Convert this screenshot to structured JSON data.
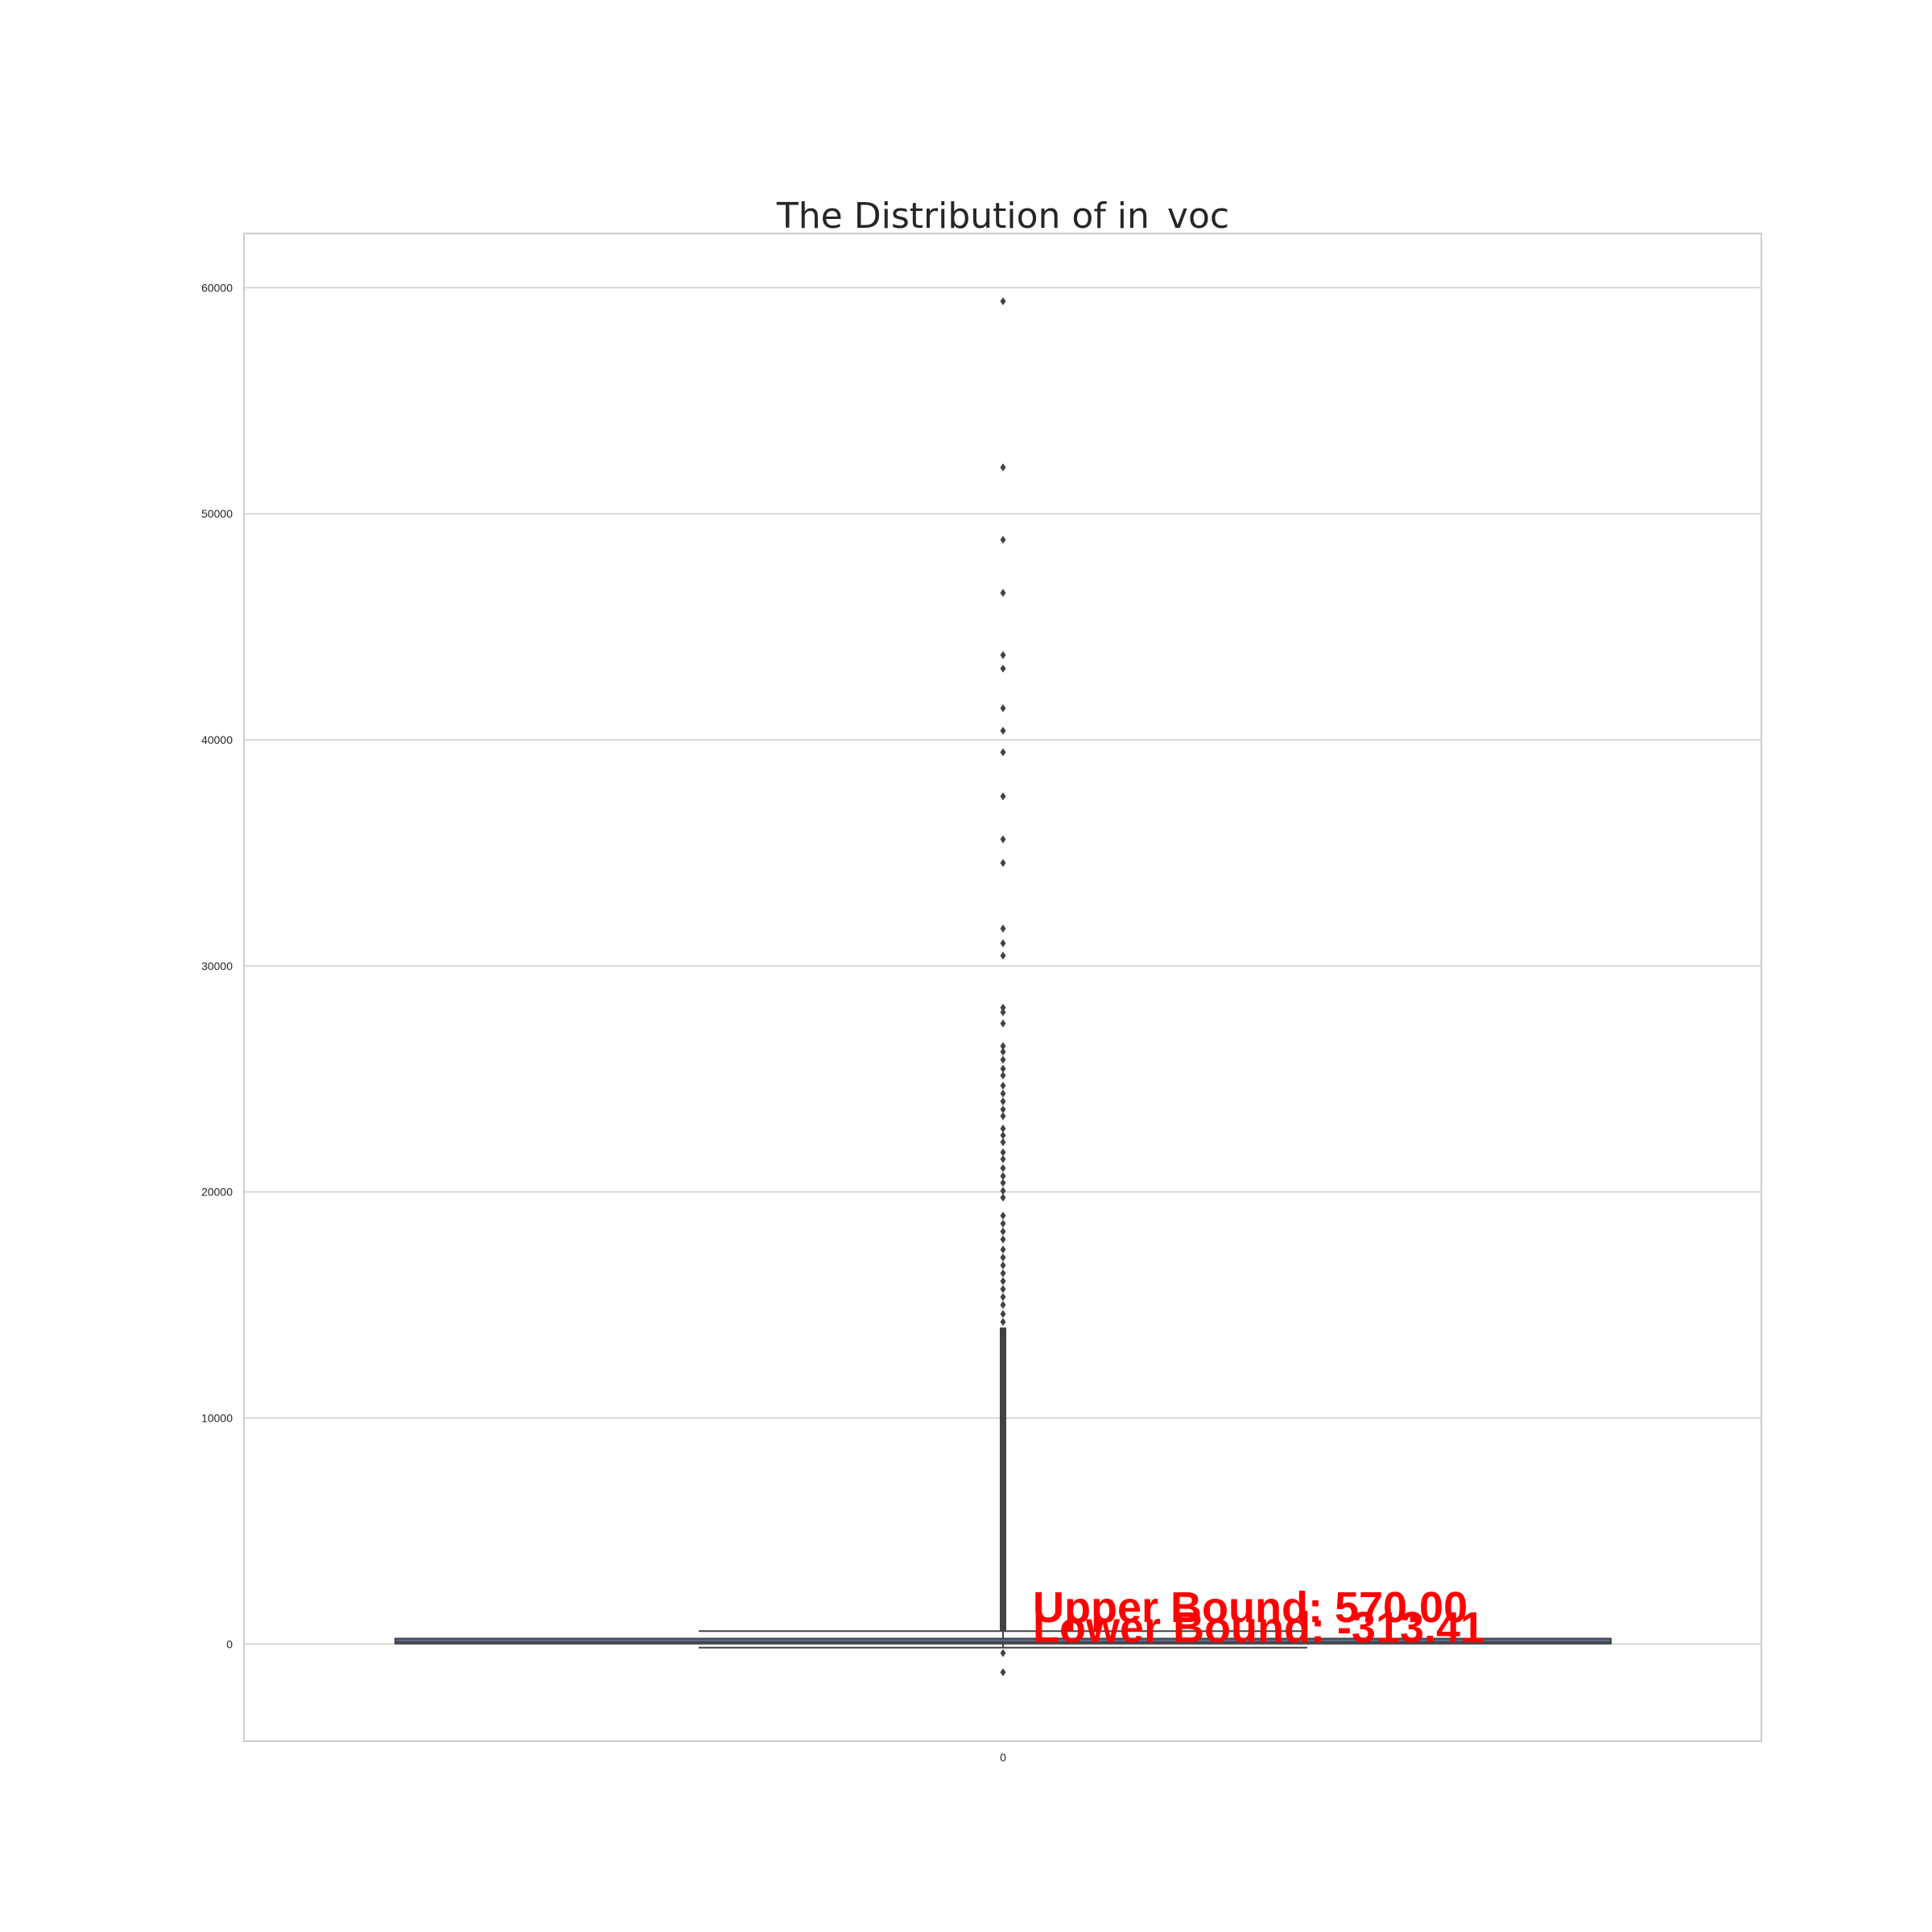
{
  "chart_data": {
    "type": "box",
    "title": "The Distribution of in_voc",
    "xlabel": "",
    "ylabel": "",
    "categories": [
      "0"
    ],
    "ylim": [
      -4300,
      62400
    ],
    "yticks": [
      0,
      10000,
      20000,
      30000,
      40000,
      50000,
      60000
    ],
    "grid": "horizontal",
    "box": {
      "q1": 18,
      "median": 90,
      "q3": 240,
      "whisker_low": -160,
      "whisker_high": 570
    },
    "outliers": [
      59400,
      52050,
      48850,
      46500,
      43750,
      43150,
      41400,
      40400,
      39450,
      37500,
      35600,
      34550,
      31650,
      31000,
      30450,
      28150,
      27950,
      27450,
      26450,
      26200,
      25850,
      25450,
      25150,
      24700,
      24350,
      24000,
      23650,
      23350,
      22800,
      22500,
      22200,
      21750,
      21450,
      21050,
      20700,
      20400,
      20050,
      19750,
      18950,
      18600,
      18250,
      17900,
      17450,
      17100,
      16750,
      16400,
      16050,
      15700,
      15350,
      15000,
      14600,
      14250,
      13850,
      13500,
      13200,
      12900,
      12600,
      12300,
      12000,
      11700,
      11400,
      11100,
      10800,
      10500,
      10200,
      9900,
      9600,
      9300,
      9000,
      8700,
      8400,
      8100,
      7800,
      7500,
      7200,
      6900,
      6600,
      6300,
      6000,
      5700,
      5400,
      5100,
      4800,
      4500,
      4200,
      3900,
      3600,
      3300,
      3000,
      2700,
      2400,
      2100,
      1800,
      1500,
      1200,
      950,
      750,
      -400,
      -1250
    ],
    "annotations": [
      {
        "text": "Upper Bound: 570.00",
        "value": 570.0
      },
      {
        "text": "Lower Bound: -313.41",
        "value": -313.41
      }
    ],
    "colors": {
      "box": "#5a6b8c",
      "line": "#424242",
      "outlier": "#424242",
      "annotation": "#ff0000",
      "grid": "#cccccc"
    }
  }
}
